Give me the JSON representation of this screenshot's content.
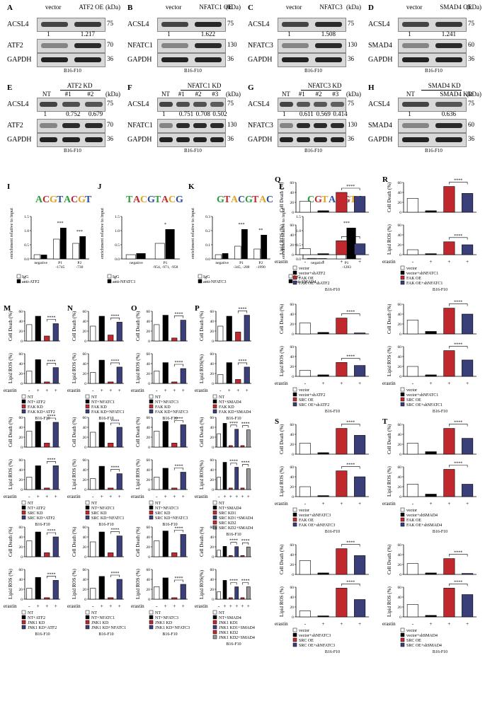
{
  "cell_line": "B16-F10",
  "blots_row1": [
    {
      "label": "A",
      "lanes": [
        "vector",
        "ATF2 OE"
      ],
      "target": "ATF2",
      "target_kda": "70",
      "quant": [
        "1",
        "1.217"
      ]
    },
    {
      "label": "B",
      "lanes": [
        "vector",
        "NFATC1 OE"
      ],
      "target": "NFATC1",
      "target_kda": "130",
      "quant": [
        "1",
        "1.622"
      ]
    },
    {
      "label": "C",
      "lanes": [
        "vector",
        "NFATC3"
      ],
      "target": "NFATC3",
      "target_kda": "130",
      "quant": [
        "1",
        "1.508"
      ]
    },
    {
      "label": "D",
      "lanes": [
        "vector",
        "SMAD4 OE"
      ],
      "target": "SMAD4",
      "target_kda": "60",
      "quant": [
        "1",
        "1.241"
      ]
    }
  ],
  "blots_row2": [
    {
      "label": "E",
      "group": "ATF2 KD",
      "lanes": [
        "NT",
        "#1",
        "#2"
      ],
      "target": "ATF2",
      "target_kda": "70",
      "quant": [
        "1",
        "0.752",
        "0.679"
      ]
    },
    {
      "label": "F",
      "group": "NFATC1 KD",
      "lanes": [
        "NT",
        "#1",
        "#2",
        "#3"
      ],
      "target": "NFATC1",
      "target_kda": "130",
      "quant": [
        "1",
        "0.751",
        "0.708",
        "0.502"
      ]
    },
    {
      "label": "G",
      "group": "NFATC3 KD",
      "lanes": [
        "NT",
        "#1",
        "#2",
        "#3"
      ],
      "target": "NFATC3",
      "target_kda": "130",
      "quant": [
        "1",
        "0.611",
        "0.569",
        "0.414"
      ]
    },
    {
      "label": "H",
      "group": "SMAD4 KD",
      "lanes": [
        "NT",
        "SMAD4 KD"
      ],
      "target": "SMAD4",
      "target_kda": "60",
      "quant": [
        "1",
        "0.636"
      ]
    }
  ],
  "kda_header": "(kDa)",
  "acsl4": "ACSL4",
  "acsl4_kda": "75",
  "gapdh": "GAPDH",
  "gapdh_kda": "36",
  "chip": [
    {
      "label": "I",
      "ylabel": "enrichment relative to input",
      "cats": [
        "negative",
        "P1\n-1745",
        "P2\n-730"
      ],
      "legend": [
        "IgG",
        "anti-ATF2"
      ],
      "ymax": 1.5,
      "ticks": [
        "0.0",
        "0.5",
        "1.0",
        "1.5"
      ],
      "igg": [
        0.15,
        0.7,
        0.55
      ],
      "ab": [
        0.15,
        1.1,
        0.8
      ],
      "sig": [
        "***",
        "***"
      ]
    },
    {
      "label": "J",
      "ylabel": "enrichment relative to input",
      "cats": [
        "negative",
        "P1\n-954, -971, -958"
      ],
      "legend": [
        "IgG",
        "anti-NFATC1"
      ],
      "ymax": 1.5,
      "ticks": [
        "0.0",
        "0.5",
        "1.0",
        "1.5"
      ],
      "igg": [
        0.15,
        0.55
      ],
      "ab": [
        0.2,
        1.05
      ],
      "sig": [
        "*"
      ]
    },
    {
      "label": "K",
      "ylabel": "enrichment relative to input",
      "cats": [
        "negative",
        "P1\n-345, -288",
        "P2\n-1990"
      ],
      "legend": [
        "IgG",
        "anti-NFATC3"
      ],
      "ymax": 0.3,
      "ticks": [
        "0.0",
        "0.1",
        "0.2",
        "0.3"
      ],
      "igg": [
        0.03,
        0.09,
        0.07
      ],
      "ab": [
        0.04,
        0.21,
        0.17
      ],
      "sig": [
        "***",
        "**"
      ]
    },
    {
      "label": "L",
      "ylabel": "enrichment relative to input",
      "cats": [
        "negative",
        "P1\n-1283"
      ],
      "legend": [
        "IgG",
        "anti-SMAD4"
      ],
      "ymax": 1.5,
      "ticks": [
        "0.0",
        "0.5",
        "1.0",
        "1.5"
      ],
      "igg": [
        0.02,
        0.25
      ],
      "ab": [
        0.02,
        1.1
      ],
      "sig": [
        "***"
      ]
    }
  ],
  "axis_cd": "Cell Death (%)",
  "axis_ros": "Lipid ROS (%)",
  "axis_ros2": "Lipid ROS(%)",
  "erastin": "erastin",
  "plus": "+",
  "minus": "-",
  "sig4": "****",
  "ferro": [
    {
      "label": "M",
      "cd": [
        33,
        50,
        10,
        35
      ],
      "ros": [
        25,
        48,
        3,
        32
      ],
      "legend": [
        "NT",
        "NT+ATF2",
        "FAK KD",
        "FAK KD+ATF2"
      ]
    },
    {
      "label": "N",
      "cd": [
        30,
        50,
        12,
        38
      ],
      "ros": [
        22,
        47,
        3,
        33
      ],
      "legend": [
        "NT",
        "NT+NFATC1",
        "FAK KD",
        "FAK KD+NFATC1"
      ]
    },
    {
      "label": "O",
      "cd": [
        33,
        52,
        6,
        42
      ],
      "ros": [
        25,
        42,
        3,
        30
      ],
      "legend": [
        "NT",
        "NT+NFATC3",
        "FAK KD",
        "FAK KD+NFATC3"
      ]
    },
    {
      "label": "P",
      "cd": [
        30,
        50,
        18,
        52
      ],
      "ros": [
        18,
        42,
        8,
        33
      ],
      "legend": [
        "NT",
        "NT+SMAD4",
        "FAK KD",
        "FAK KD+SMAD4"
      ]
    },
    {
      "label": "",
      "cd": [
        32,
        52,
        8,
        50
      ],
      "ros": [
        25,
        48,
        3,
        48
      ],
      "legend": [
        "NT",
        "NT+ATF2",
        "SRC KD",
        "SRC KD+ATF2"
      ]
    },
    {
      "label": "",
      "cd": [
        30,
        50,
        8,
        40
      ],
      "ros": [
        22,
        47,
        3,
        32
      ],
      "legend": [
        "NT",
        "NT+NFATC1",
        "SRC KD",
        "SRC KD+NFATC1"
      ]
    },
    {
      "label": "",
      "cd": [
        32,
        52,
        8,
        45
      ],
      "ros": [
        25,
        43,
        3,
        35
      ],
      "legend": [
        "NT",
        "NT+NFATC3",
        "SRC KD",
        "SRC KD+NFATC3"
      ]
    },
    {
      "label": "",
      "cd": [
        45,
        80,
        5,
        60,
        5,
        58
      ],
      "ros": [
        25,
        55,
        3,
        45,
        3,
        42
      ],
      "legend": [
        "NT",
        "NT+SMAD4",
        "SRC KD1",
        "SRC KD1+SMAD4",
        "SRC KD2",
        "SRC KD2+SMAD4"
      ]
    },
    {
      "label": "",
      "cd": [
        32,
        50,
        8,
        40
      ],
      "ros": [
        22,
        44,
        3,
        38
      ],
      "legend": [
        "NT",
        "NT+ATF2",
        "JNK1 KD",
        "JNK1 KD+ATF2"
      ]
    },
    {
      "label": "",
      "cd": [
        30,
        50,
        8,
        42
      ],
      "ros": [
        22,
        46,
        3,
        40
      ],
      "legend": [
        "NT",
        "NT+NFATC1",
        "JNK1 KD",
        "JNK1 KD+NFATC1"
      ]
    },
    {
      "label": "",
      "cd": [
        32,
        52,
        8,
        45
      ],
      "ros": [
        25,
        43,
        3,
        30
      ],
      "legend": [
        "NT",
        "NT+NFATC3",
        "JNK1 KD",
        "JNK1 KD+NFATC3"
      ]
    },
    {
      "label": "",
      "cd": [
        22,
        35,
        4,
        34,
        4,
        33
      ],
      "ros": [
        15,
        38,
        3,
        25,
        3,
        25
      ],
      "legend": [
        "NT",
        "NT+SMAD4",
        "JNK1 KD1",
        "JNK1 KD1+SMAD4",
        "JNK1 KD2",
        "JNK1 KD2+SMAD4"
      ]
    }
  ],
  "oe": [
    {
      "label": "Q",
      "cd": [
        22,
        3,
        40,
        32
      ],
      "ros": [
        12,
        2,
        28,
        22
      ],
      "legend": [
        "vector",
        "vector+shATF2",
        "FAK OE",
        "FAK OE+shATF2"
      ]
    },
    {
      "label": "R",
      "cd": [
        28,
        3,
        52,
        38
      ],
      "ros": [
        10,
        2,
        26,
        20
      ],
      "legend": [
        "vector",
        "vector+shNFATC1",
        "FAK OE",
        "FAK OE+shNFATC1"
      ]
    },
    {
      "label": "",
      "cd": [
        22,
        3,
        32,
        2
      ],
      "ros": [
        12,
        3,
        28,
        22
      ],
      "legend": [
        "vector",
        "vector+shATF2",
        "SRC OE",
        "SRC OE+shATF2"
      ]
    },
    {
      "label": "",
      "cd": [
        28,
        5,
        52,
        40
      ],
      "ros": [
        20,
        3,
        52,
        33
      ],
      "legend": [
        "vector",
        "vector+shNFATC1",
        "SRC OE",
        "SRC OE+shNFATC1"
      ]
    },
    {
      "label": "S",
      "cd": [
        22,
        3,
        52,
        38
      ],
      "ros": [
        20,
        2,
        52,
        40
      ],
      "legend": [
        "vector",
        "vector+shNFATC3",
        "FAK OE",
        "FAK OE+shNFATC3"
      ]
    },
    {
      "label": "T",
      "cd": [
        22,
        5,
        52,
        32
      ],
      "ros": [
        25,
        5,
        55,
        25
      ],
      "legend": [
        "vector",
        "vector+shSMAD4",
        "FAK OE",
        "FAK OE+shSMAD4"
      ]
    },
    {
      "label": "",
      "cd": [
        28,
        3,
        52,
        38
      ],
      "ros": [
        12,
        2,
        58,
        35
      ],
      "legend": [
        "vector",
        "vector+shNFATC3",
        "SRC OE",
        "SRC OE+shNFATC3"
      ]
    },
    {
      "label": "",
      "cd": [
        22,
        3,
        32,
        2
      ],
      "ros": [
        25,
        3,
        58,
        45
      ],
      "legend": [
        "vector",
        "vector+shSMAD4",
        "SRC OE",
        "SRC OE+shSMAD4"
      ]
    }
  ],
  "colors": {
    "white": "#ffffff",
    "black": "#000000",
    "red": "#c0282d",
    "navy": "#3a3f7a",
    "gray": "#999999"
  }
}
